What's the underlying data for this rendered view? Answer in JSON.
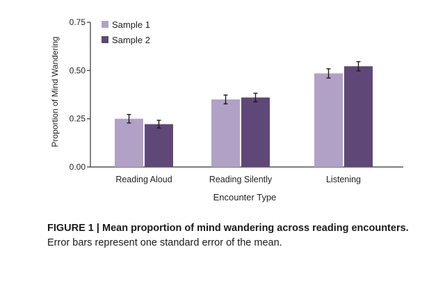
{
  "chart_data": {
    "type": "bar",
    "title": "",
    "xlabel": "Encounter Type",
    "ylabel": "Proportion of Mind Wandering",
    "ylim": [
      0,
      0.75
    ],
    "yticks": [
      "0.00",
      "0.25",
      "0.50",
      "0.75"
    ],
    "ytick_values": [
      0,
      0.25,
      0.5,
      0.75
    ],
    "categories": [
      "Reading Aloud",
      "Reading Silently",
      "Listening"
    ],
    "series": [
      {
        "name": "Sample 1",
        "values": [
          0.25,
          0.35,
          0.485
        ],
        "errors": [
          0.022,
          0.023,
          0.024
        ],
        "color": "#b2a1c7"
      },
      {
        "name": "Sample 2",
        "values": [
          0.222,
          0.36,
          0.522
        ],
        "errors": [
          0.02,
          0.022,
          0.024
        ],
        "color": "#5f4878"
      }
    ],
    "legend_position": "top-left",
    "grid": false
  },
  "caption": {
    "bold": "FIGURE 1 | Mean proportion of mind wandering across reading encounters.",
    "normal": " Error bars represent one standard error of the mean."
  }
}
